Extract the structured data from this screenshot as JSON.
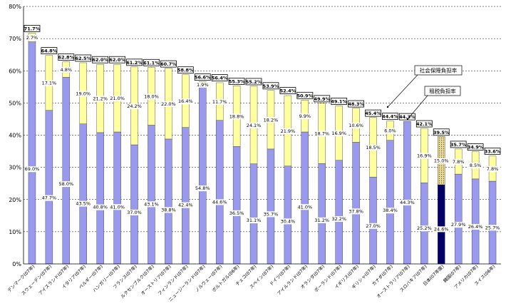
{
  "chart_data": {
    "type": "bar",
    "stacked": true,
    "ylim": [
      0,
      80
    ],
    "yticks": [
      "0%",
      "10%",
      "20%",
      "30%",
      "40%",
      "50%",
      "60%",
      "70%",
      "80%"
    ],
    "grid": true,
    "categories": [
      "デンマーク(07年)",
      "スウェーデン(07年)",
      "アイスランド(07年)",
      "イタリア(07年)",
      "ベルギー(07年)",
      "ハンガリー(07年)",
      "フランス(07年)",
      "ルクセンブルク(07年)",
      "オーストリア(07年)",
      "フィンランド(07年)",
      "ニュージーランド(07年)",
      "ノルウェー(07年)",
      "ポルトガル(06年)",
      "チェコ(07年)",
      "スペイン(07年)",
      "ドイツ(07年)",
      "アイルランド(07年)",
      "オランダ(07年)",
      "ポーランド(07年)",
      "イギリス(07年)",
      "ギリシャ(07年)",
      "カナダ(07年)",
      "オーストラリア(07年)",
      "スロバキア(07年)",
      "日本(07年度)",
      "韓国(07年)",
      "アメリカ(07年)",
      "スイス(06年)"
    ],
    "series": [
      {
        "name": "租税負担率",
        "color": "#9999ee",
        "values": [
          69.0,
          47.7,
          58.0,
          43.5,
          40.8,
          41.0,
          37.0,
          43.1,
          38.8,
          42.4,
          54.8,
          44.6,
          36.5,
          31.1,
          35.7,
          30.4,
          41.0,
          31.2,
          32.2,
          37.8,
          27.0,
          38.4,
          44.3,
          25.2,
          24.6,
          27.9,
          26.4,
          25.7
        ],
        "labels": [
          "69.0%",
          "47.7%",
          "58.0%",
          "43.5%",
          "40.8%",
          "41.0%",
          "37.0%",
          "43.1%",
          "38.8%",
          "42.4%",
          "54.8%",
          "44.6%",
          "36.5%",
          "31.1%",
          "35.7%",
          "30.4%",
          "41.0%",
          "31.2%",
          "32.2%",
          "37.8%",
          "27.0%",
          "38.4%",
          "44.3%",
          "25.2%",
          "24.6%",
          "27.9%",
          "26.4%",
          "25.7%"
        ]
      },
      {
        "name": "社会保障負担率",
        "color": "#ffffa0",
        "values": [
          2.7,
          17.1,
          4.8,
          19.0,
          21.2,
          21.0,
          24.2,
          18.0,
          22.0,
          16.4,
          1.9,
          11.7,
          18.8,
          24.1,
          18.2,
          21.9,
          9.9,
          18.7,
          16.9,
          10.6,
          18.5,
          6.0,
          0.0,
          16.9,
          15.0,
          7.8,
          8.5,
          7.8
        ],
        "labels": [
          "2.7%",
          "17.1%",
          "4.8%",
          "19.0%",
          "21.2%",
          "21.0%",
          "24.2%",
          "18.0%",
          "22.0%",
          "16.4%",
          "1.9%",
          "11.7%",
          "18.8%",
          "24.1%",
          "18.2%",
          "21.9%",
          "9.9%",
          "18.7%",
          "16.9%",
          "10.6%",
          "18.5%",
          "6.0%",
          "",
          "16.9%",
          "15.0%",
          "7.8%",
          "8.5%",
          "7.8%"
        ]
      }
    ],
    "totals": [
      71.7,
      64.8,
      62.8,
      62.5,
      62.0,
      62.0,
      61.2,
      61.1,
      60.7,
      58.8,
      56.6,
      56.4,
      55.3,
      55.2,
      53.9,
      52.4,
      50.9,
      49.9,
      49.1,
      48.3,
      45.4,
      44.4,
      44.3,
      42.1,
      39.5,
      35.7,
      34.9,
      33.6
    ],
    "total_labels": [
      "71.7%",
      "64.8%",
      "62.8%",
      "62.5%",
      "62.0%",
      "62.0%",
      "61.2%",
      "61.1%",
      "60.7%",
      "58.8%",
      "56.6%",
      "56.4%",
      "55.3%",
      "55.2%",
      "53.9%",
      "52.4%",
      "50.9%",
      "49.9%",
      "49.1%",
      "48.3%",
      "45.4%",
      "44.4%",
      "44.3%",
      "42.1%",
      "39.5%",
      "35.7%",
      "34.9%",
      "33.6%"
    ],
    "highlight_index": 24,
    "highlight_colors": {
      "tax": "#000066",
      "social": "#e8d890"
    },
    "legend": [
      {
        "text": "社会保障負担率"
      },
      {
        "text": "租税負担率"
      }
    ]
  }
}
